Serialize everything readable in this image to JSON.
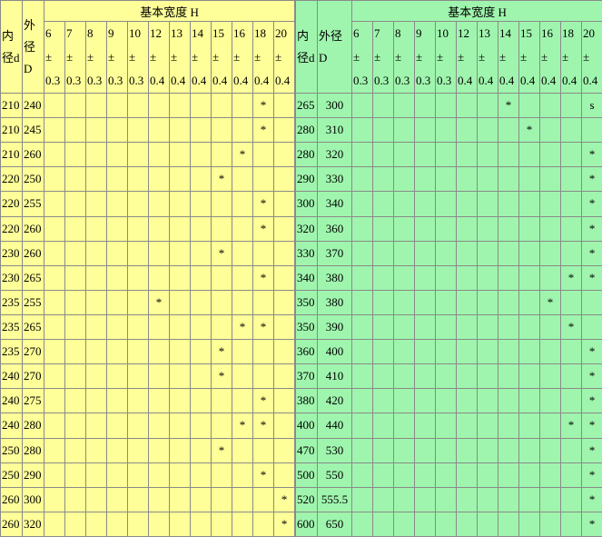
{
  "left": {
    "title": "基本宽度 H",
    "inner_label": "内径d",
    "outer_label": "外径D",
    "columns": [
      {
        "width": "6",
        "sign": "±",
        "tol": "0.3"
      },
      {
        "width": "7",
        "sign": "±",
        "tol": "0.3"
      },
      {
        "width": "8",
        "sign": "±",
        "tol": "0.3"
      },
      {
        "width": "9",
        "sign": "±",
        "tol": "0.3"
      },
      {
        "width": "10",
        "sign": "±",
        "tol": "0.3"
      },
      {
        "width": "12",
        "sign": "±",
        "tol": "0.4"
      },
      {
        "width": "13",
        "sign": "±",
        "tol": "0.4"
      },
      {
        "width": "14",
        "sign": "±",
        "tol": "0.4"
      },
      {
        "width": "15",
        "sign": "±",
        "tol": "0.4"
      },
      {
        "width": "16",
        "sign": "±",
        "tol": "0.4"
      },
      {
        "width": "18",
        "sign": "±",
        "tol": "0.4"
      },
      {
        "width": "20",
        "sign": "±",
        "tol": "0.4"
      }
    ],
    "rows": [
      {
        "d": "210",
        "D": "240",
        "cells": [
          null,
          null,
          null,
          null,
          null,
          null,
          null,
          null,
          null,
          null,
          "*",
          null
        ]
      },
      {
        "d": "210",
        "D": "245",
        "cells": [
          null,
          null,
          null,
          null,
          null,
          null,
          null,
          null,
          null,
          null,
          "*",
          null
        ]
      },
      {
        "d": "210",
        "D": "260",
        "cells": [
          null,
          null,
          null,
          null,
          null,
          null,
          null,
          null,
          null,
          "*",
          null,
          null
        ]
      },
      {
        "d": "220",
        "D": "250",
        "cells": [
          null,
          null,
          null,
          null,
          null,
          null,
          null,
          null,
          "*",
          null,
          null,
          null
        ]
      },
      {
        "d": "220",
        "D": "255",
        "cells": [
          null,
          null,
          null,
          null,
          null,
          null,
          null,
          null,
          null,
          null,
          "*",
          null
        ]
      },
      {
        "d": "220",
        "D": "260",
        "cells": [
          null,
          null,
          null,
          null,
          null,
          null,
          null,
          null,
          null,
          null,
          "*",
          null
        ]
      },
      {
        "d": "230",
        "D": "260",
        "cells": [
          null,
          null,
          null,
          null,
          null,
          null,
          null,
          null,
          "*",
          null,
          null,
          null
        ]
      },
      {
        "d": "230",
        "D": "265",
        "cells": [
          null,
          null,
          null,
          null,
          null,
          null,
          null,
          null,
          null,
          null,
          "*",
          null
        ]
      },
      {
        "d": "235",
        "D": "255",
        "cells": [
          null,
          null,
          null,
          null,
          null,
          "*",
          null,
          null,
          null,
          null,
          null,
          null
        ]
      },
      {
        "d": "235",
        "D": "265",
        "cells": [
          null,
          null,
          null,
          null,
          null,
          null,
          null,
          null,
          null,
          "*",
          "*",
          null
        ]
      },
      {
        "d": "235",
        "D": "270",
        "cells": [
          null,
          null,
          null,
          null,
          null,
          null,
          null,
          null,
          "*",
          null,
          null,
          null
        ]
      },
      {
        "d": "240",
        "D": "270",
        "cells": [
          null,
          null,
          null,
          null,
          null,
          null,
          null,
          null,
          "*",
          null,
          null,
          null
        ]
      },
      {
        "d": "240",
        "D": "275",
        "cells": [
          null,
          null,
          null,
          null,
          null,
          null,
          null,
          null,
          null,
          null,
          "*",
          null
        ]
      },
      {
        "d": "240",
        "D": "280",
        "cells": [
          null,
          null,
          null,
          null,
          null,
          null,
          null,
          null,
          null,
          "*",
          "*",
          null
        ]
      },
      {
        "d": "250",
        "D": "280",
        "cells": [
          null,
          null,
          null,
          null,
          null,
          null,
          null,
          null,
          "*",
          null,
          null,
          null
        ]
      },
      {
        "d": "250",
        "D": "290",
        "cells": [
          null,
          null,
          null,
          null,
          null,
          null,
          null,
          null,
          null,
          null,
          "*",
          null
        ]
      },
      {
        "d": "260",
        "D": "300",
        "cells": [
          null,
          null,
          null,
          null,
          null,
          null,
          null,
          null,
          null,
          null,
          null,
          "*"
        ]
      },
      {
        "d": "260",
        "D": "320",
        "cells": [
          null,
          null,
          null,
          null,
          null,
          null,
          null,
          null,
          null,
          null,
          null,
          "*"
        ]
      }
    ]
  },
  "right": {
    "title": "基本宽度 H",
    "inner_label": "内径d",
    "outer_label": "外径D",
    "columns": [
      {
        "width": "6",
        "sign": "±",
        "tol": "0.3"
      },
      {
        "width": "7",
        "sign": "±",
        "tol": "0.3"
      },
      {
        "width": "8",
        "sign": "±",
        "tol": "0.3"
      },
      {
        "width": "9",
        "sign": "±",
        "tol": "0.3"
      },
      {
        "width": "10",
        "sign": "±",
        "tol": "0.3"
      },
      {
        "width": "12",
        "sign": "±",
        "tol": "0.4"
      },
      {
        "width": "13",
        "sign": "±",
        "tol": "0.4"
      },
      {
        "width": "14",
        "sign": "±",
        "tol": "0.4"
      },
      {
        "width": "15",
        "sign": "±",
        "tol": "0.4"
      },
      {
        "width": "16",
        "sign": "±",
        "tol": "0.4"
      },
      {
        "width": "18",
        "sign": "±",
        "tol": "0.4"
      },
      {
        "width": "20",
        "sign": "±",
        "tol": "0.4"
      }
    ],
    "rows": [
      {
        "d": "265",
        "D": "300",
        "cells": [
          null,
          null,
          null,
          null,
          null,
          null,
          null,
          "*",
          null,
          null,
          null,
          "s"
        ]
      },
      {
        "d": "280",
        "D": "310",
        "cells": [
          null,
          null,
          null,
          null,
          null,
          null,
          null,
          null,
          "*",
          null,
          null,
          null
        ]
      },
      {
        "d": "280",
        "D": "320",
        "cells": [
          null,
          null,
          null,
          null,
          null,
          null,
          null,
          null,
          null,
          null,
          null,
          "*"
        ]
      },
      {
        "d": "290",
        "D": "330",
        "cells": [
          null,
          null,
          null,
          null,
          null,
          null,
          null,
          null,
          null,
          null,
          null,
          "*"
        ]
      },
      {
        "d": "300",
        "D": "340",
        "cells": [
          null,
          null,
          null,
          null,
          null,
          null,
          null,
          null,
          null,
          null,
          null,
          "*"
        ]
      },
      {
        "d": "320",
        "D": "360",
        "cells": [
          null,
          null,
          null,
          null,
          null,
          null,
          null,
          null,
          null,
          null,
          null,
          "*"
        ]
      },
      {
        "d": "330",
        "D": "370",
        "cells": [
          null,
          null,
          null,
          null,
          null,
          null,
          null,
          null,
          null,
          null,
          null,
          "*"
        ]
      },
      {
        "d": "340",
        "D": "380",
        "cells": [
          null,
          null,
          null,
          null,
          null,
          null,
          null,
          null,
          null,
          null,
          "*",
          "*"
        ]
      },
      {
        "d": "350",
        "D": "380",
        "cells": [
          null,
          null,
          null,
          null,
          null,
          null,
          null,
          null,
          null,
          "*",
          null,
          null
        ]
      },
      {
        "d": "350",
        "D": "390",
        "cells": [
          null,
          null,
          null,
          null,
          null,
          null,
          null,
          null,
          null,
          null,
          "*",
          null
        ]
      },
      {
        "d": "360",
        "D": "400",
        "cells": [
          null,
          null,
          null,
          null,
          null,
          null,
          null,
          null,
          null,
          null,
          null,
          "*"
        ]
      },
      {
        "d": "370",
        "D": "410",
        "cells": [
          null,
          null,
          null,
          null,
          null,
          null,
          null,
          null,
          null,
          null,
          null,
          "*"
        ]
      },
      {
        "d": "380",
        "D": "420",
        "cells": [
          null,
          null,
          null,
          null,
          null,
          null,
          null,
          null,
          null,
          null,
          null,
          "*"
        ]
      },
      {
        "d": "400",
        "D": "440",
        "cells": [
          null,
          null,
          null,
          null,
          null,
          null,
          null,
          null,
          null,
          null,
          "*",
          "*"
        ]
      },
      {
        "d": "470",
        "D": "530",
        "cells": [
          null,
          null,
          null,
          null,
          null,
          null,
          null,
          null,
          null,
          null,
          null,
          "*"
        ]
      },
      {
        "d": "500",
        "D": "550",
        "cells": [
          null,
          null,
          null,
          null,
          null,
          null,
          null,
          null,
          null,
          null,
          null,
          "*"
        ]
      },
      {
        "d": "520",
        "D": "555.5",
        "cells": [
          null,
          null,
          null,
          null,
          null,
          null,
          null,
          null,
          null,
          null,
          null,
          "*"
        ]
      },
      {
        "d": "600",
        "D": "650",
        "cells": [
          null,
          null,
          null,
          null,
          null,
          null,
          null,
          null,
          null,
          null,
          null,
          "*"
        ]
      }
    ]
  }
}
